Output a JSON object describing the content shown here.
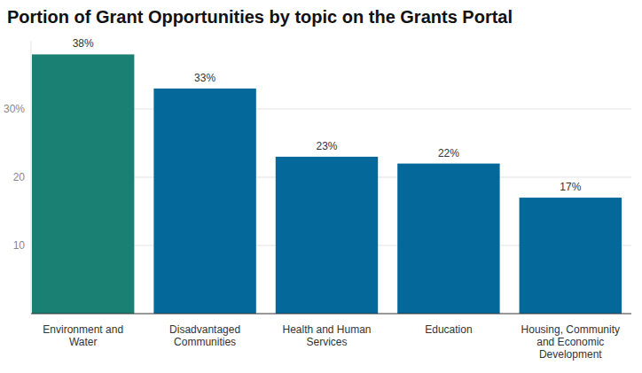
{
  "chart_data": {
    "type": "bar",
    "title": "Portion of Grant Opportunities by topic on the Grants Portal",
    "categories": [
      "Environment and Water",
      "Disadvantaged Communities",
      "Health and Human Services",
      "Education",
      "Housing, Community and Economic Development"
    ],
    "values": [
      38,
      33,
      23,
      22,
      17
    ],
    "value_labels": [
      "38%",
      "33%",
      "23%",
      "22%",
      "17%"
    ],
    "colors": [
      "#1a8073",
      "#04689a",
      "#04689a",
      "#04689a",
      "#04689a"
    ],
    "ylim": [
      0,
      40
    ],
    "yticks": [
      10,
      20,
      {
        "value": 30,
        "label": "30%"
      }
    ],
    "grid": true,
    "data_labels": true
  }
}
